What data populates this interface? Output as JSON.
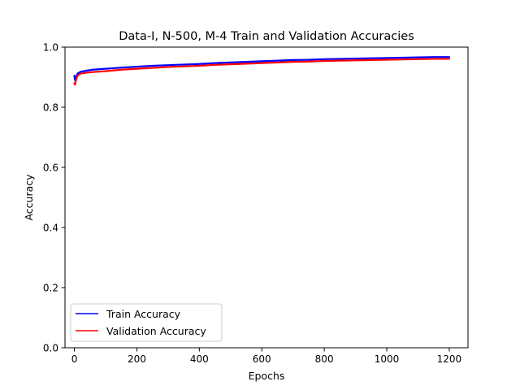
{
  "chart_data": {
    "type": "line",
    "title": "Data-I, N-500, M-4 Train and Validation Accuracies",
    "xlabel": "Epochs",
    "ylabel": "Accuracy",
    "xlim": [
      -30,
      1260
    ],
    "ylim": [
      0.0,
      1.0
    ],
    "xticks": [
      0,
      200,
      400,
      600,
      800,
      1000,
      1200
    ],
    "yticks": [
      0.0,
      0.2,
      0.4,
      0.6,
      0.8,
      1.0
    ],
    "xtick_labels": [
      "0",
      "200",
      "400",
      "600",
      "800",
      "1000",
      "1200"
    ],
    "ytick_labels": [
      "0.0",
      "0.2",
      "0.4",
      "0.6",
      "0.8",
      "1.0"
    ],
    "grid": false,
    "legend_position": "lower-left",
    "series": [
      {
        "name": "Train Accuracy",
        "color": "#0000ff",
        "x": [
          0,
          2,
          5,
          10,
          20,
          40,
          60,
          100,
          150,
          200,
          250,
          300,
          350,
          400,
          450,
          500,
          550,
          600,
          650,
          700,
          750,
          800,
          850,
          900,
          950,
          1000,
          1050,
          1100,
          1150,
          1200
        ],
        "y": [
          0.905,
          0.89,
          0.9,
          0.912,
          0.918,
          0.922,
          0.925,
          0.928,
          0.932,
          0.935,
          0.938,
          0.94,
          0.942,
          0.944,
          0.947,
          0.949,
          0.951,
          0.953,
          0.955,
          0.957,
          0.958,
          0.96,
          0.961,
          0.962,
          0.963,
          0.964,
          0.965,
          0.966,
          0.967,
          0.967
        ]
      },
      {
        "name": "Validation Accuracy",
        "color": "#ff0000",
        "x": [
          0,
          2,
          5,
          10,
          20,
          40,
          60,
          100,
          150,
          200,
          250,
          300,
          350,
          400,
          450,
          500,
          550,
          600,
          650,
          700,
          750,
          800,
          850,
          900,
          950,
          1000,
          1050,
          1100,
          1150,
          1200
        ],
        "y": [
          0.88,
          0.875,
          0.89,
          0.905,
          0.912,
          0.915,
          0.917,
          0.92,
          0.925,
          0.928,
          0.931,
          0.934,
          0.936,
          0.938,
          0.941,
          0.943,
          0.945,
          0.947,
          0.949,
          0.951,
          0.952,
          0.954,
          0.955,
          0.956,
          0.957,
          0.958,
          0.959,
          0.96,
          0.961,
          0.961
        ]
      }
    ]
  }
}
